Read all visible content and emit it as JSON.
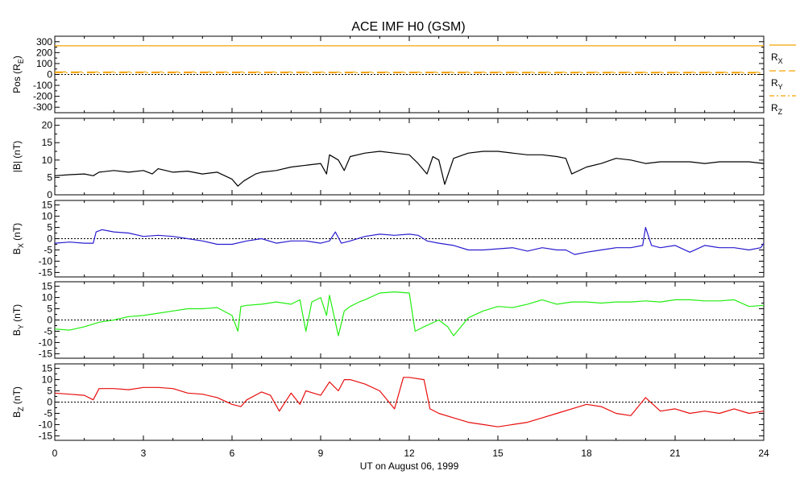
{
  "chart_data": {
    "type": "line",
    "title": "ACE IMF H0 (GSM)",
    "xlabel": "UT on August 06, 1999",
    "xlim": [
      0,
      24
    ],
    "xticks": [
      "0",
      "3",
      "6",
      "9",
      "12",
      "15",
      "18",
      "21",
      "24"
    ],
    "panels": [
      {
        "id": "pos",
        "ylabel": "Pos (R_E)",
        "ylabel_main": "Pos (R",
        "ylabel_sub": "E",
        "ylabel_end": ")",
        "ylim": [
          -350,
          350
        ],
        "yticks": [
          "300",
          "200",
          "100",
          "0",
          "-100",
          "-200",
          "-300"
        ],
        "yticks_values": [
          300,
          200,
          100,
          0,
          -100,
          -200,
          -300
        ],
        "zero_line": true,
        "legend": [
          {
            "main": "R",
            "sub": "X",
            "color": "#f5a300",
            "dash": "solid"
          },
          {
            "main": "R",
            "sub": "Y",
            "color": "#f5a300",
            "dash": "dashed"
          },
          {
            "main": "R",
            "sub": "Z",
            "color": "#f5a300",
            "dash": "dashdot"
          }
        ],
        "series": [
          {
            "name": "R_X",
            "color": "#f5a300",
            "dash": "solid",
            "x": [
              0,
              24
            ],
            "y": [
              262,
              262
            ]
          },
          {
            "name": "R_Y",
            "color": "#f5a300",
            "dash": "dashed",
            "x": [
              0,
              24
            ],
            "y": [
              23,
              20
            ]
          },
          {
            "name": "R_Z",
            "color": "#f5a300",
            "dash": "dashdot",
            "x": [
              0,
              24
            ],
            "y": [
              16,
              14
            ]
          }
        ]
      },
      {
        "id": "bmag",
        "ylabel_main": "|B| (nT)",
        "ylabel_sub": "",
        "ylabel_end": "",
        "ylim": [
          0,
          22
        ],
        "yticks": [
          "20",
          "15",
          "10",
          "5",
          "0"
        ],
        "yticks_values": [
          20,
          15,
          10,
          5,
          0
        ],
        "zero_line": false,
        "series": [
          {
            "name": "|B|",
            "color": "#000000",
            "x": [
              0,
              0.5,
              1,
              1.3,
              1.5,
              2,
              2.5,
              3,
              3.3,
              3.5,
              4,
              4.5,
              5,
              5.5,
              6,
              6.2,
              6.4,
              6.8,
              7,
              7.5,
              8,
              8.5,
              9,
              9.2,
              9.3,
              9.6,
              9.8,
              10,
              10.5,
              11,
              11.5,
              12,
              12.3,
              12.6,
              12.8,
              13,
              13.2,
              13.5,
              14,
              14.5,
              15,
              15.5,
              16,
              16.5,
              17,
              17.3,
              17.5,
              18,
              18.5,
              19,
              19.5,
              20,
              20.5,
              21,
              21.5,
              22,
              22.5,
              23,
              23.5,
              24
            ],
            "y": [
              5.5,
              5.8,
              6,
              5.5,
              6.5,
              7,
              6.5,
              7,
              6,
              7.5,
              6.5,
              6.8,
              6,
              6.5,
              4.5,
              2.5,
              4,
              6,
              6.5,
              7,
              8,
              8.5,
              9,
              6,
              11.5,
              10,
              7,
              11,
              12,
              12.5,
              12,
              11.5,
              9,
              6,
              11,
              10,
              3,
              10.5,
              12,
              12.5,
              12.5,
              12,
              11.5,
              11.5,
              11,
              10.5,
              6,
              8,
              9,
              10.5,
              10,
              9,
              9.5,
              9.5,
              9.5,
              9,
              9.5,
              9.5,
              9.5,
              9
            ]
          }
        ]
      },
      {
        "id": "bx",
        "ylabel_main": "B",
        "ylabel_sub": "X",
        "ylabel_end": " (nT)",
        "ylim": [
          -17,
          17
        ],
        "yticks": [
          "15",
          "10",
          "5",
          "0",
          "-5",
          "-10",
          "-15"
        ],
        "yticks_values": [
          15,
          10,
          5,
          0,
          -5,
          -10,
          -15
        ],
        "zero_line": true,
        "series": [
          {
            "name": "B_X",
            "color": "#2a1ccf",
            "x": [
              0,
              0.5,
              1,
              1.3,
              1.4,
              1.6,
              2,
              2.5,
              3,
              3.5,
              4,
              4.5,
              5,
              5.5,
              6,
              6.5,
              7,
              7.5,
              8,
              8.5,
              9,
              9.3,
              9.5,
              9.7,
              10,
              10.5,
              11,
              11.5,
              12,
              12.3,
              12.6,
              13,
              13.5,
              14,
              14.5,
              15,
              15.5,
              16,
              16.5,
              17,
              17.3,
              17.6,
              18,
              18.5,
              19,
              19.5,
              19.9,
              20,
              20.2,
              20.5,
              21,
              21.5,
              22,
              22.5,
              23,
              23.5,
              23.9,
              24
            ],
            "y": [
              -2,
              -1.5,
              -2,
              -2,
              3,
              4,
              3,
              2.5,
              1,
              1.5,
              1,
              0,
              -1,
              -2.5,
              -2.5,
              -1,
              0,
              -2,
              -1,
              -1,
              -2,
              -1,
              3,
              -2,
              -1,
              1,
              2,
              1.5,
              2,
              1.5,
              -1,
              -2,
              -3,
              -5,
              -5,
              -4.5,
              -4,
              -5.5,
              -4,
              -5,
              -5,
              -7,
              -6,
              -5,
              -4,
              -4,
              -3,
              5,
              -3,
              -4,
              -3,
              -6,
              -3,
              -4,
              -4,
              -5,
              -4,
              -2
            ]
          }
        ]
      },
      {
        "id": "by",
        "ylabel_main": "B",
        "ylabel_sub": "Y",
        "ylabel_end": " (nT)",
        "ylim": [
          -17,
          17
        ],
        "yticks": [
          "15",
          "10",
          "5",
          "0",
          "-5",
          "-10",
          "-15"
        ],
        "yticks_values": [
          15,
          10,
          5,
          0,
          -5,
          -10,
          -15
        ],
        "zero_line": true,
        "series": [
          {
            "name": "B_Y",
            "color": "#22ee11",
            "x": [
              0,
              0.5,
              1,
              1.5,
              2,
              2.5,
              3,
              3.5,
              4,
              4.5,
              5,
              5.5,
              6,
              6.2,
              6.3,
              6.5,
              7,
              7.5,
              8,
              8.3,
              8.5,
              8.7,
              9,
              9.2,
              9.3,
              9.6,
              9.8,
              10,
              10.3,
              10.5,
              11,
              11.5,
              12,
              12.2,
              12.5,
              13,
              13.3,
              13.5,
              14,
              14.5,
              15,
              15.5,
              16,
              16.5,
              17,
              17.5,
              18,
              18.5,
              19,
              19.5,
              20,
              20.5,
              21,
              21.5,
              22,
              22.5,
              23,
              23.5,
              24
            ],
            "y": [
              -4,
              -4.5,
              -3,
              -1,
              0,
              1.5,
              2,
              3,
              4,
              5,
              5,
              5.5,
              2,
              -5,
              6,
              6.5,
              7,
              8,
              7,
              9,
              -5,
              8,
              10,
              2,
              11,
              -7,
              4,
              6,
              8,
              9,
              12,
              12.5,
              12,
              -5,
              -3,
              0,
              -3,
              -7,
              1,
              4,
              6,
              5.5,
              7,
              9,
              7,
              8,
              8,
              7.5,
              8,
              8,
              8.5,
              8,
              9,
              9,
              8.5,
              8.5,
              9,
              6,
              6.5
            ]
          }
        ]
      },
      {
        "id": "bz",
        "ylabel_main": "B",
        "ylabel_sub": "Z",
        "ylabel_end": " (nT)",
        "ylim": [
          -17,
          17
        ],
        "yticks": [
          "15",
          "10",
          "5",
          "0",
          "-5",
          "-10",
          "-15"
        ],
        "yticks_values": [
          15,
          10,
          5,
          0,
          -5,
          -10,
          -15
        ],
        "zero_line": true,
        "series": [
          {
            "name": "B_Z",
            "color": "#e80d0d",
            "x": [
              0,
              0.5,
              1,
              1.3,
              1.5,
              2,
              2.5,
              3,
              3.5,
              4,
              4.5,
              5,
              5.5,
              6,
              6.3,
              6.5,
              7,
              7.3,
              7.6,
              8,
              8.3,
              8.5,
              9,
              9.3,
              9.6,
              9.8,
              10,
              10.5,
              11,
              11.5,
              11.8,
              12,
              12.5,
              12.7,
              13,
              13.5,
              14,
              14.5,
              15,
              15.5,
              16,
              16.5,
              17,
              17.5,
              18,
              18.5,
              19,
              19.5,
              20,
              20.5,
              21,
              21.5,
              22,
              22.5,
              23,
              23.5,
              24
            ],
            "y": [
              4,
              3.5,
              3,
              1,
              6,
              6,
              5.5,
              6.5,
              6.5,
              6,
              4,
              3.5,
              2,
              -1,
              -2,
              1,
              4.5,
              3,
              -4,
              4,
              -1,
              5,
              3,
              9,
              5,
              10,
              10,
              8,
              5,
              -3,
              11,
              11,
              10,
              -3,
              -5,
              -7,
              -9,
              -10,
              -11,
              -10,
              -9,
              -7,
              -5,
              -3,
              -1,
              -2,
              -5,
              -6,
              2,
              -4,
              -3,
              -5,
              -4,
              -5,
              -3,
              -5,
              -4
            ]
          }
        ]
      }
    ]
  }
}
